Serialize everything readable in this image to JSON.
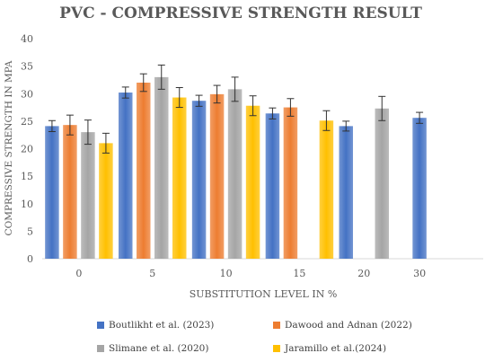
{
  "chart_data": {
    "type": "bar",
    "title": "PVC - COMPRESSIVE STRENGTH RESULT",
    "xlabel": "SUBSTITUTION LEVEL IN %",
    "ylabel": "COMPRESSIVE STRENGTH IN MPA",
    "ylim": [
      0,
      40
    ],
    "yticks": [
      "0",
      "5",
      "10",
      "15",
      "20",
      "25",
      "30",
      "35",
      "40"
    ],
    "grid": false,
    "legend_position": "bottom",
    "categories": [
      "0",
      "5",
      "10",
      "15",
      "20",
      "30"
    ],
    "series": [
      {
        "name": "Boutlikht et al. (2023)",
        "color": "#4472c4",
        "values": [
          24.1,
          30.2,
          28.7,
          26.4,
          24.1,
          25.6
        ],
        "errors": [
          1.0,
          1.0,
          1.0,
          1.0,
          0.9,
          1.0
        ]
      },
      {
        "name": "Dawood and Adnan (2022)",
        "color": "#ed7d31",
        "values": [
          24.3,
          32.0,
          29.9,
          27.5,
          null,
          null
        ],
        "errors": [
          1.8,
          1.6,
          1.6,
          1.6,
          null,
          null
        ]
      },
      {
        "name": "Slimane et al. (2020)",
        "color": "#a5a5a5",
        "values": [
          23.0,
          33.0,
          30.8,
          null,
          27.3,
          null
        ],
        "errors": [
          2.2,
          2.2,
          2.2,
          null,
          2.2,
          null
        ]
      },
      {
        "name": "Jaramillo et al.(2024)",
        "color": "#ffc000",
        "values": [
          21.0,
          29.3,
          27.8,
          25.1,
          null,
          null
        ],
        "errors": [
          1.8,
          1.8,
          1.8,
          1.8,
          null,
          null
        ]
      }
    ]
  }
}
